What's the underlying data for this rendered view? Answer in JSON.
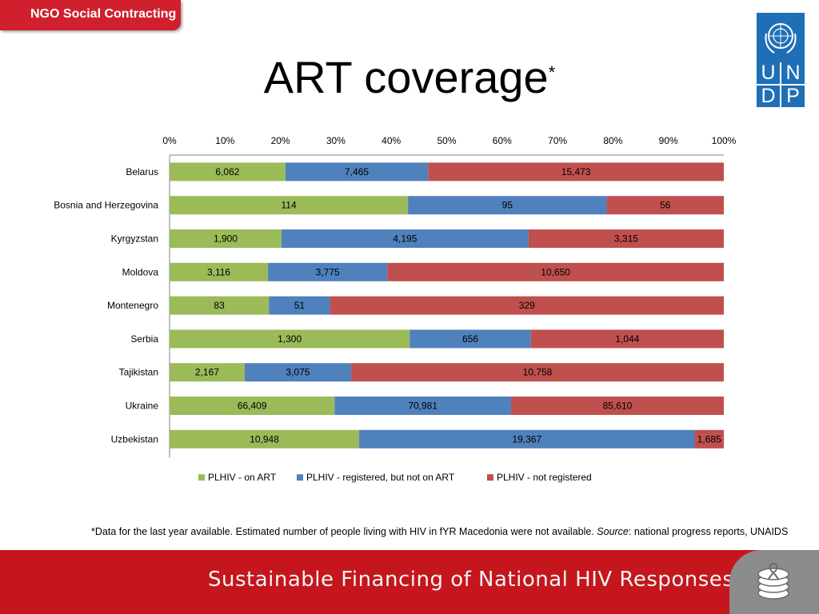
{
  "header": {
    "tab_label": "NGO Social Contracting",
    "title": "ART coverage",
    "title_mark": "*"
  },
  "logo": {
    "letters": [
      "U",
      "N",
      "D",
      "P"
    ]
  },
  "chart_data": {
    "type": "bar",
    "orientation": "horizontal",
    "stacking": "percent",
    "categories": [
      "Belarus",
      "Bosnia and Herzegovina",
      "Kyrgyzstan",
      "Moldova",
      "Montenegro",
      "Serbia",
      "Tajikistan",
      "Ukraine",
      "Uzbekistan"
    ],
    "series": [
      {
        "name": "PLHIV - on ART",
        "color": "#9bbb59",
        "values": [
          6062,
          114,
          1900,
          3116,
          83,
          1300,
          2167,
          66409,
          10948
        ],
        "labels": [
          "6,062",
          "114",
          "1,900",
          "3,116",
          "83",
          "1,300",
          "2,167",
          "66,409",
          "10,948"
        ]
      },
      {
        "name": "PLHIV - registered, but not on ART",
        "color": "#4f81bd",
        "values": [
          7465,
          95,
          4195,
          3775,
          51,
          656,
          3075,
          70981,
          19367
        ],
        "labels": [
          "7,465",
          "95",
          "4,195",
          "3,775",
          "51",
          "656",
          "3,075",
          "70,981",
          "19,367"
        ]
      },
      {
        "name": "PLHIV - not registered",
        "color": "#c0504d",
        "values": [
          15473,
          56,
          3315,
          10650,
          329,
          1044,
          10758,
          85610,
          1685
        ],
        "labels": [
          "15,473",
          "56",
          "3,315",
          "10,650",
          "329",
          "1,044",
          "10,758",
          "85,610",
          "1,685"
        ]
      }
    ],
    "x_ticks": [
      "0%",
      "10%",
      "20%",
      "30%",
      "40%",
      "50%",
      "60%",
      "70%",
      "80%",
      "90%",
      "100%"
    ],
    "xlim": [
      0,
      100
    ],
    "axis_position": "top",
    "grid": false,
    "legend_position": "bottom"
  },
  "footnote": {
    "text": "*Data for the last year available. Estimated number of people living with HIV in fYR Macedonia were not available. ",
    "source_label": "Source",
    "source_text": ": national progress reports, UNAIDS"
  },
  "footer": {
    "text": "Sustainable Financing of National HIV Responses"
  }
}
